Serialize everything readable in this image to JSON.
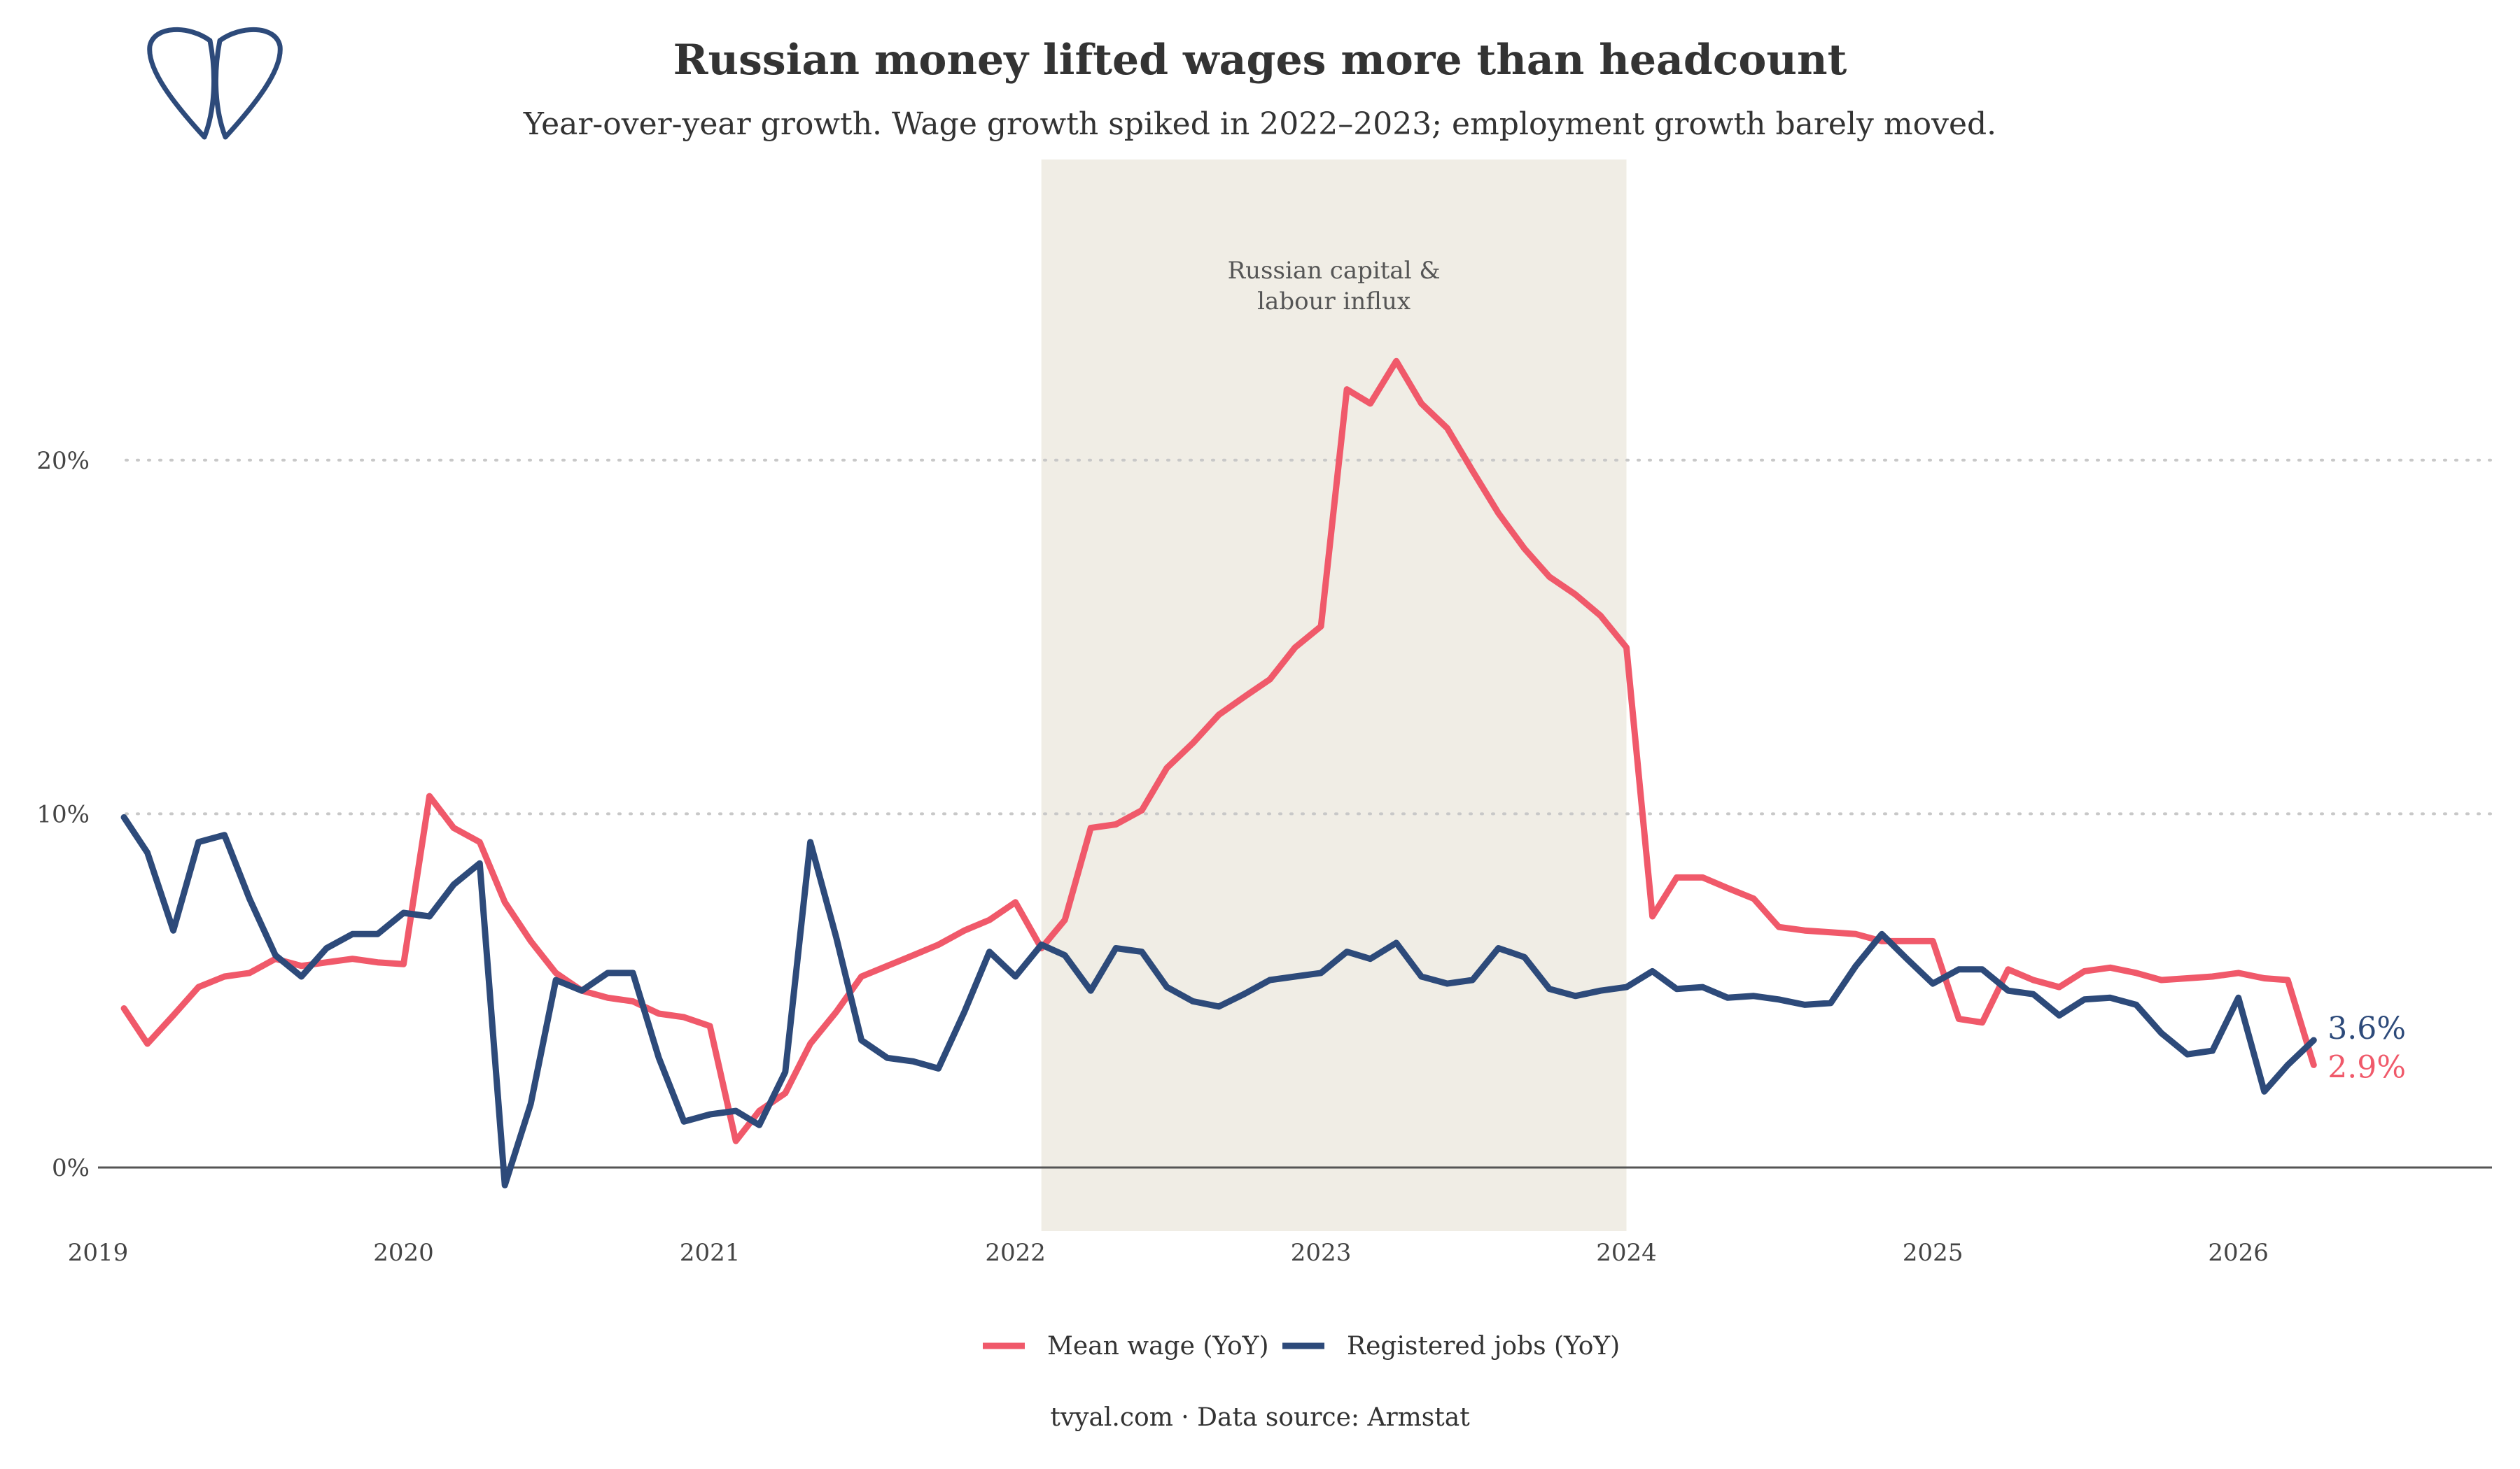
{
  "title": "Russian money lifted wages more than headcount",
  "subtitle": "Year-over-year growth. Wage growth spiked in 2022–2023; employment growth barely moved.",
  "caption": "tvyal.com  ·  Data source: Armstat",
  "brand_icon": "tvyal-logo-icon",
  "colors": {
    "wage": "#F0596A",
    "jobs": "#2D4A7A",
    "shade": "#F0EDE5",
    "grid": "#C8C8C8",
    "zero_line": "#555555"
  },
  "chart_data": {
    "type": "line",
    "title": "Russian money lifted wages more than headcount",
    "subtitle": "Year-over-year growth. Wage growth spiked in 2022–2023; employment growth barely moved.",
    "x_axis": {
      "type": "date",
      "range": [
        "2019-01-01",
        "2026-10-31"
      ],
      "ticks": [
        "2019",
        "2020",
        "2021",
        "2022",
        "2023",
        "2024",
        "2025",
        "2026"
      ]
    },
    "y_axis": {
      "range": [
        -1.8,
        28.5
      ],
      "ticks": [
        0,
        10,
        20
      ],
      "tick_labels": [
        "0%",
        "10%",
        "20%"
      ]
    },
    "grid": "horizontal dotted",
    "legend_position": "bottom",
    "shaded_period": {
      "start": "2022-02-01",
      "end": "2024-01-01",
      "label_lines": [
        "Russian capital &",
        "labour influx"
      ]
    },
    "series": [
      {
        "name": "Mean wage (YoY)",
        "color": "#F0596A",
        "end_label": "2.9%",
        "points": [
          [
            "2019-02-01",
            4.5
          ],
          [
            "2019-03-01",
            3.5
          ],
          [
            "2019-04-01",
            4.3
          ],
          [
            "2019-05-01",
            5.1
          ],
          [
            "2019-06-01",
            5.4
          ],
          [
            "2019-07-01",
            5.5
          ],
          [
            "2019-08-01",
            5.9
          ],
          [
            "2019-09-01",
            5.7
          ],
          [
            "2019-10-01",
            5.8
          ],
          [
            "2019-11-01",
            5.9
          ],
          [
            "2019-12-01",
            5.8
          ],
          [
            "2020-01-01",
            5.75
          ],
          [
            "2020-02-01",
            10.5
          ],
          [
            "2020-03-01",
            9.6
          ],
          [
            "2020-04-01",
            9.2
          ],
          [
            "2020-05-01",
            7.5
          ],
          [
            "2020-06-01",
            6.4
          ],
          [
            "2020-07-01",
            5.5
          ],
          [
            "2020-08-01",
            5.0
          ],
          [
            "2020-09-01",
            4.8
          ],
          [
            "2020-10-01",
            4.7
          ],
          [
            "2020-11-01",
            4.35
          ],
          [
            "2020-12-01",
            4.25
          ],
          [
            "2021-01-01",
            4.0
          ],
          [
            "2021-02-01",
            0.75
          ],
          [
            "2021-03-01",
            1.6
          ],
          [
            "2021-04-01",
            2.1
          ],
          [
            "2021-05-01",
            3.5
          ],
          [
            "2021-06-01",
            4.4
          ],
          [
            "2021-07-01",
            5.4
          ],
          [
            "2021-08-01",
            5.7
          ],
          [
            "2021-09-01",
            6.0
          ],
          [
            "2021-10-01",
            6.3
          ],
          [
            "2021-11-01",
            6.7
          ],
          [
            "2021-12-01",
            7.0
          ],
          [
            "2022-01-01",
            7.5
          ],
          [
            "2022-02-01",
            6.2
          ],
          [
            "2022-03-01",
            7.0
          ],
          [
            "2022-04-01",
            9.6
          ],
          [
            "2022-05-01",
            9.7
          ],
          [
            "2022-06-01",
            10.1
          ],
          [
            "2022-07-01",
            11.3
          ],
          [
            "2022-08-01",
            12.0
          ],
          [
            "2022-09-01",
            12.8
          ],
          [
            "2022-10-01",
            13.3
          ],
          [
            "2022-11-01",
            13.8
          ],
          [
            "2022-12-01",
            14.7
          ],
          [
            "2023-01-01",
            15.3
          ],
          [
            "2023-02-01",
            22.0
          ],
          [
            "2023-03-01",
            21.6
          ],
          [
            "2023-04-01",
            22.8
          ],
          [
            "2023-05-01",
            21.6
          ],
          [
            "2023-06-01",
            20.9
          ],
          [
            "2023-07-01",
            19.7
          ],
          [
            "2023-08-01",
            18.5
          ],
          [
            "2023-09-01",
            17.5
          ],
          [
            "2023-10-01",
            16.7
          ],
          [
            "2023-11-01",
            16.2
          ],
          [
            "2023-12-01",
            15.6
          ],
          [
            "2024-01-01",
            14.7
          ],
          [
            "2024-02-01",
            7.1
          ],
          [
            "2024-03-01",
            8.2
          ],
          [
            "2024-04-01",
            8.2
          ],
          [
            "2024-05-01",
            7.9
          ],
          [
            "2024-06-01",
            7.6
          ],
          [
            "2024-07-01",
            6.8
          ],
          [
            "2024-08-01",
            6.7
          ],
          [
            "2024-09-01",
            6.65
          ],
          [
            "2024-10-01",
            6.6
          ],
          [
            "2024-11-01",
            6.4
          ],
          [
            "2024-12-01",
            6.4
          ],
          [
            "2025-01-01",
            6.4
          ],
          [
            "2025-02-01",
            4.2
          ],
          [
            "2025-03-01",
            4.1
          ],
          [
            "2025-04-01",
            5.6
          ],
          [
            "2025-05-01",
            5.3
          ],
          [
            "2025-06-01",
            5.1
          ],
          [
            "2025-07-01",
            5.55
          ],
          [
            "2025-08-01",
            5.65
          ],
          [
            "2025-09-01",
            5.5
          ],
          [
            "2025-10-01",
            5.3
          ],
          [
            "2025-11-01",
            5.35
          ],
          [
            "2025-12-01",
            5.4
          ],
          [
            "2026-01-01",
            5.5
          ],
          [
            "2026-02-01",
            5.35
          ],
          [
            "2026-03-01",
            5.3
          ],
          [
            "2026-04-01",
            2.9
          ]
        ]
      },
      {
        "name": "Registered jobs (YoY)",
        "color": "#2D4A7A",
        "end_label": "3.6%",
        "points": [
          [
            "2019-02-01",
            9.9
          ],
          [
            "2019-03-01",
            8.9
          ],
          [
            "2019-04-01",
            6.7
          ],
          [
            "2019-05-01",
            9.2
          ],
          [
            "2019-06-01",
            9.4
          ],
          [
            "2019-07-01",
            7.6
          ],
          [
            "2019-08-01",
            6.0
          ],
          [
            "2019-09-01",
            5.4
          ],
          [
            "2019-10-01",
            6.2
          ],
          [
            "2019-11-01",
            6.6
          ],
          [
            "2019-12-01",
            6.6
          ],
          [
            "2020-01-01",
            7.2
          ],
          [
            "2020-02-01",
            7.1
          ],
          [
            "2020-03-01",
            8.0
          ],
          [
            "2020-04-01",
            8.6
          ],
          [
            "2020-05-01",
            -0.5
          ],
          [
            "2020-06-01",
            1.8
          ],
          [
            "2020-07-01",
            5.3
          ],
          [
            "2020-08-01",
            5.0
          ],
          [
            "2020-09-01",
            5.5
          ],
          [
            "2020-10-01",
            5.5
          ],
          [
            "2020-11-01",
            3.1
          ],
          [
            "2020-12-01",
            1.3
          ],
          [
            "2021-01-01",
            1.5
          ],
          [
            "2021-02-01",
            1.6
          ],
          [
            "2021-03-01",
            1.2
          ],
          [
            "2021-04-01",
            2.7
          ],
          [
            "2021-05-01",
            9.2
          ],
          [
            "2021-06-01",
            6.5
          ],
          [
            "2021-07-01",
            3.6
          ],
          [
            "2021-08-01",
            3.1
          ],
          [
            "2021-09-01",
            3.0
          ],
          [
            "2021-10-01",
            2.8
          ],
          [
            "2021-11-01",
            4.4
          ],
          [
            "2021-12-01",
            6.1
          ],
          [
            "2022-01-01",
            5.4
          ],
          [
            "2022-02-01",
            6.3
          ],
          [
            "2022-03-01",
            6.0
          ],
          [
            "2022-04-01",
            5.0
          ],
          [
            "2022-05-01",
            6.2
          ],
          [
            "2022-06-01",
            6.1
          ],
          [
            "2022-07-01",
            5.1
          ],
          [
            "2022-08-01",
            4.7
          ],
          [
            "2022-09-01",
            4.55
          ],
          [
            "2022-10-01",
            4.9
          ],
          [
            "2022-11-01",
            5.3
          ],
          [
            "2022-12-01",
            5.4
          ],
          [
            "2023-01-01",
            5.5
          ],
          [
            "2023-02-01",
            6.1
          ],
          [
            "2023-03-01",
            5.9
          ],
          [
            "2023-04-01",
            6.35
          ],
          [
            "2023-05-01",
            5.4
          ],
          [
            "2023-06-01",
            5.2
          ],
          [
            "2023-07-01",
            5.3
          ],
          [
            "2023-08-01",
            6.2
          ],
          [
            "2023-09-01",
            5.95
          ],
          [
            "2023-10-01",
            5.05
          ],
          [
            "2023-11-01",
            4.85
          ],
          [
            "2023-12-01",
            5.0
          ],
          [
            "2024-01-01",
            5.1
          ],
          [
            "2024-02-01",
            5.55
          ],
          [
            "2024-03-01",
            5.05
          ],
          [
            "2024-04-01",
            5.1
          ],
          [
            "2024-05-01",
            4.8
          ],
          [
            "2024-06-01",
            4.85
          ],
          [
            "2024-07-01",
            4.75
          ],
          [
            "2024-08-01",
            4.6
          ],
          [
            "2024-09-01",
            4.65
          ],
          [
            "2024-10-01",
            5.7
          ],
          [
            "2024-11-01",
            6.6
          ],
          [
            "2024-12-01",
            5.9
          ],
          [
            "2025-01-01",
            5.2
          ],
          [
            "2025-02-01",
            5.6
          ],
          [
            "2025-03-01",
            5.6
          ],
          [
            "2025-04-01",
            5.0
          ],
          [
            "2025-05-01",
            4.9
          ],
          [
            "2025-06-01",
            4.3
          ],
          [
            "2025-07-01",
            4.75
          ],
          [
            "2025-08-01",
            4.8
          ],
          [
            "2025-09-01",
            4.6
          ],
          [
            "2025-10-01",
            3.8
          ],
          [
            "2025-11-01",
            3.2
          ],
          [
            "2025-12-01",
            3.3
          ],
          [
            "2026-01-01",
            4.8
          ],
          [
            "2026-02-01",
            2.15
          ],
          [
            "2026-03-01",
            2.9
          ],
          [
            "2026-04-01",
            3.6
          ]
        ]
      }
    ]
  }
}
